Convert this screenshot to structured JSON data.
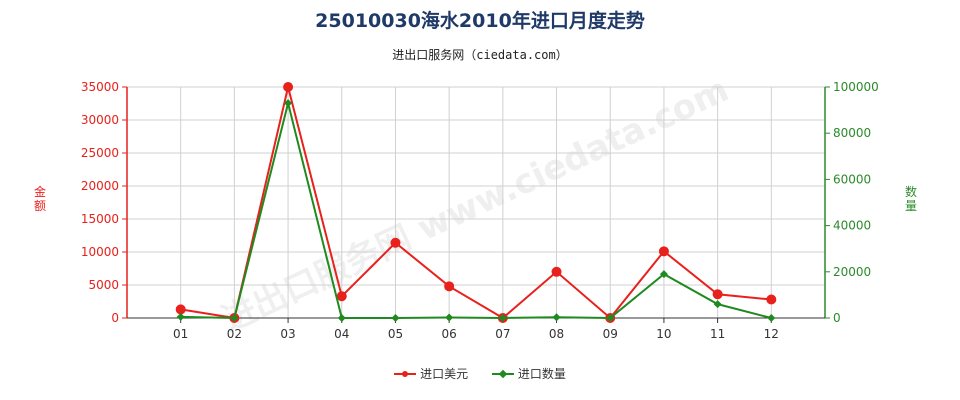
{
  "title": "25010030海水2010年进口月度走势",
  "subtitle": "进出口服务网（ciedata.com）",
  "chart_data": {
    "type": "line",
    "categories": [
      "01",
      "02",
      "03",
      "04",
      "05",
      "06",
      "07",
      "08",
      "09",
      "10",
      "11",
      "12"
    ],
    "ylabel_left": "金额",
    "ylabel_right": "数量",
    "y_left": {
      "min": 0,
      "max": 35000,
      "ticks": [
        0,
        5000,
        10000,
        15000,
        20000,
        25000,
        30000,
        35000
      ]
    },
    "y_right": {
      "min": 0,
      "max": 100000,
      "ticks": [
        0,
        20000,
        40000,
        60000,
        80000,
        100000
      ]
    },
    "grid": true,
    "legend_position": "bottom",
    "series": [
      {
        "name": "进口美元",
        "axis": "left",
        "color": "#e8211c",
        "marker": "circle",
        "values": [
          1300,
          0,
          35000,
          3300,
          11400,
          4800,
          0,
          7000,
          0,
          10100,
          3600,
          2800
        ]
      },
      {
        "name": "进口数量",
        "axis": "right",
        "color": "#1f8a1f",
        "marker": "diamond",
        "values": [
          500,
          0,
          93000,
          0,
          0,
          200,
          0,
          300,
          0,
          19000,
          6000,
          0
        ]
      }
    ]
  },
  "watermark": "进出口服务网 www.ciedata.com"
}
